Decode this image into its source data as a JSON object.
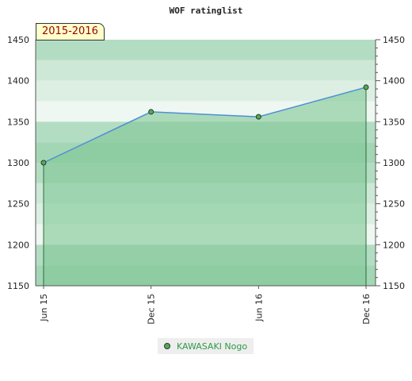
{
  "chart_data": {
    "type": "area",
    "title": "WOF ratinglist",
    "season_label": "2015-2016",
    "categories": [
      "Jun 15",
      "Dec 15",
      "Jun 16",
      "Dec 16"
    ],
    "series": [
      {
        "name": "KAWASAKI Nogo",
        "values": [
          1300,
          1362,
          1356,
          1392
        ]
      }
    ],
    "ylim": [
      1150,
      1450
    ],
    "yticks": [
      1150,
      1200,
      1250,
      1300,
      1350,
      1400,
      1450
    ],
    "grid": true,
    "legend_position": "bottom-center",
    "colors": {
      "line": "#4f8fd6",
      "area": "#7ec794",
      "marker_fill": "#4caf50",
      "legend_text": "#2e9a48",
      "season_text": "#990000",
      "season_bg": "#ffffcc",
      "bands": [
        "#b3ddc2",
        "#cde8d6",
        "#ddefe3",
        "#eef7f1",
        "#b3ddc2",
        "#a3d6b4"
      ]
    }
  }
}
